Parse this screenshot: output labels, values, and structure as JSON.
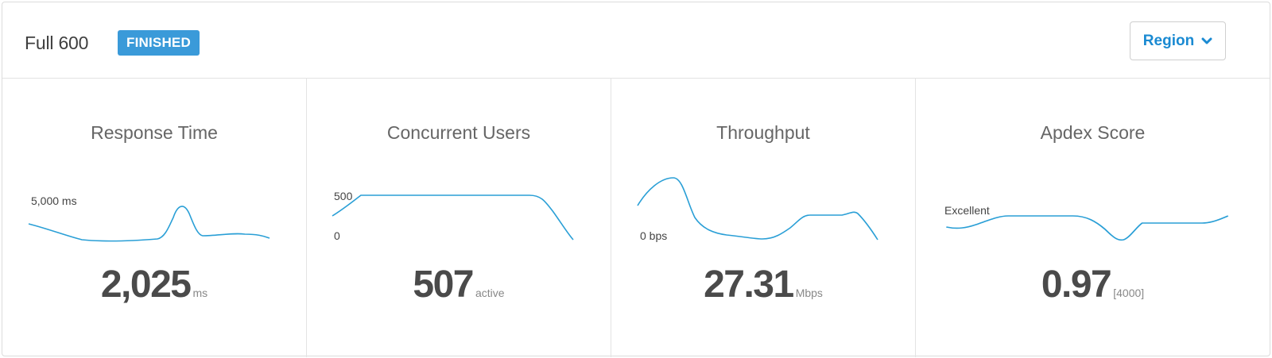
{
  "header": {
    "title": "Full 600",
    "status_badge": "FINISHED",
    "region_button": "Region"
  },
  "colors": {
    "badge": "#3a9ad9",
    "accent": "#1a8ad2",
    "sparkline": "#2a9fd6"
  },
  "metrics": [
    {
      "title": "Response Time",
      "value": "2,025",
      "unit": "ms",
      "axis_label": "5,000 ms"
    },
    {
      "title": "Concurrent Users",
      "value": "507",
      "unit": "active",
      "axis_label_top": "500",
      "axis_label_bottom": "0"
    },
    {
      "title": "Throughput",
      "value": "27.31",
      "unit": "Mbps",
      "axis_label": "0 bps"
    },
    {
      "title": "Apdex Score",
      "value": "0.97",
      "unit": "[4000]",
      "axis_label": "Excellent"
    }
  ],
  "icons": {
    "region_chevron": "chevron-down-icon"
  }
}
